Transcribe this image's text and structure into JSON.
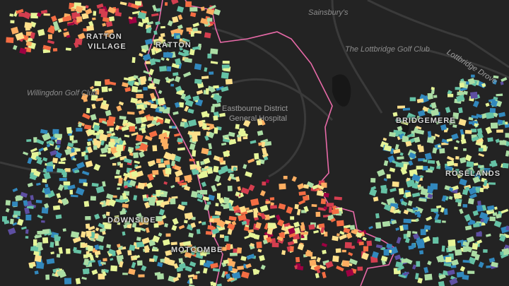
{
  "map": {
    "places": {
      "sainsburys": "Sainsbury's",
      "golf_lottbridge": "The Lottbridge Golf Club",
      "lottbridge_drove": "Lottbridge Drove",
      "willingdon_golf": "Willingdon Golf Club",
      "hospital_1": "Eastbourne District",
      "hospital_2": "General Hospital",
      "ratton_village_1": "RATTON",
      "ratton_village_2": "VILLAGE",
      "ratton": "RATTON",
      "downside": "DOWNSIDE",
      "motcombe": "MOTCOMBE",
      "bridgemere": "BRIDGEMERE",
      "roselands": "ROSELANDS"
    },
    "colors": {
      "background": "#232323",
      "roads": "#3a3a3a",
      "water": "#151515",
      "boundary": "#e86aa8",
      "palette": [
        "#5e4fa2",
        "#3288bd",
        "#66c2a5",
        "#abdda4",
        "#e6f598",
        "#fee08b",
        "#fdae61",
        "#f46d43",
        "#d53e4f",
        "#9e0142"
      ]
    }
  }
}
